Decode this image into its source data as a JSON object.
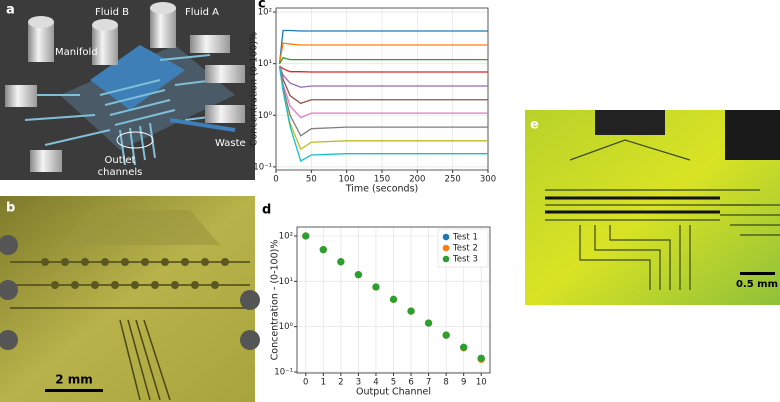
{
  "panels": {
    "a": {
      "letter": "a",
      "fluid_b": "Fluid B",
      "fluid_a": "Fluid A",
      "manifold": "Manifold",
      "outlet_1": "Outlet",
      "outlet_2": "channels",
      "waste": "Waste"
    },
    "b": {
      "letter": "b",
      "scale": "2 mm"
    },
    "c": {
      "letter": "c"
    },
    "d": {
      "letter": "d"
    },
    "e": {
      "letter": "e",
      "scale": "0.5 mm"
    }
  },
  "chart_data": [
    {
      "type": "line",
      "xlabel": "Time (seconds)",
      "ylabel": "Concentration (0-100)%",
      "x": [
        5,
        10,
        20,
        35,
        50,
        100,
        300
      ],
      "xlim": [
        0,
        300
      ],
      "xticks": [
        0,
        50,
        100,
        150,
        200,
        250,
        300
      ],
      "ylim": [
        0.087,
        120
      ],
      "yscale": "log",
      "grid": true,
      "yticks": [
        {
          "value": 0.1,
          "label": "10⁻¹"
        },
        {
          "value": 1,
          "label": "10⁰"
        },
        {
          "value": 10,
          "label": "10¹"
        },
        {
          "value": 100,
          "label": "10²"
        }
      ],
      "series": [
        {
          "color": "#1f77b4",
          "values": [
            10,
            44,
            44,
            43,
            43,
            43,
            43
          ]
        },
        {
          "color": "#ff7f0e",
          "values": [
            10,
            25,
            24,
            23,
            23,
            23,
            23
          ]
        },
        {
          "color": "#2ca02c",
          "values": [
            10,
            13,
            12,
            12,
            12,
            12,
            12
          ]
        },
        {
          "color": "#d62728",
          "values": [
            9,
            8,
            7,
            7,
            6.9,
            6.9,
            6.9
          ]
        },
        {
          "color": "#9467bd",
          "values": [
            9,
            6,
            4.2,
            3.5,
            3.7,
            3.7,
            3.7
          ]
        },
        {
          "color": "#8c564b",
          "values": [
            9,
            5,
            2.4,
            1.7,
            2.0,
            2.0,
            2.0
          ]
        },
        {
          "color": "#e377c2",
          "values": [
            9,
            4,
            1.5,
            0.9,
            1.1,
            1.1,
            1.1
          ]
        },
        {
          "color": "#7f7f7f",
          "values": [
            9,
            3.5,
            1.0,
            0.4,
            0.55,
            0.59,
            0.59
          ]
        },
        {
          "color": "#bcbd22",
          "values": [
            9,
            3,
            0.7,
            0.22,
            0.3,
            0.32,
            0.32
          ]
        },
        {
          "color": "#17becf",
          "values": [
            9,
            3,
            0.6,
            0.13,
            0.17,
            0.18,
            0.18
          ]
        }
      ]
    },
    {
      "type": "scatter",
      "xlabel": "Output Channel",
      "ylabel": "Concentration - (0-100)%",
      "x": [
        0,
        1,
        2,
        3,
        4,
        5,
        6,
        7,
        8,
        9,
        10
      ],
      "xlim": [
        -0.5,
        10.5
      ],
      "xticks": [
        0,
        1,
        2,
        3,
        4,
        5,
        6,
        7,
        8,
        9,
        10
      ],
      "ylim": [
        0.095,
        158
      ],
      "yscale": "log",
      "grid": true,
      "legend": "upper right",
      "yticks": [
        {
          "value": 0.1,
          "label": "10⁻¹"
        },
        {
          "value": 1,
          "label": "10⁰"
        },
        {
          "value": 10,
          "label": "10¹"
        },
        {
          "value": 100,
          "label": "10²"
        }
      ],
      "series": [
        {
          "name": "Test 1",
          "color": "#1f77b4",
          "values": [
            100,
            50,
            27,
            14,
            7.5,
            4,
            2.2,
            1.2,
            0.65,
            0.35,
            0.2
          ]
        },
        {
          "name": "Test 2",
          "color": "#ff7f0e",
          "values": [
            100,
            50,
            27,
            14,
            7.5,
            4,
            2.2,
            1.2,
            0.65,
            0.34,
            0.19
          ]
        },
        {
          "name": "Test 3",
          "color": "#2ca02c",
          "values": [
            100,
            50,
            27,
            14,
            7.5,
            4,
            2.2,
            1.2,
            0.65,
            0.35,
            0.2
          ]
        }
      ]
    }
  ]
}
